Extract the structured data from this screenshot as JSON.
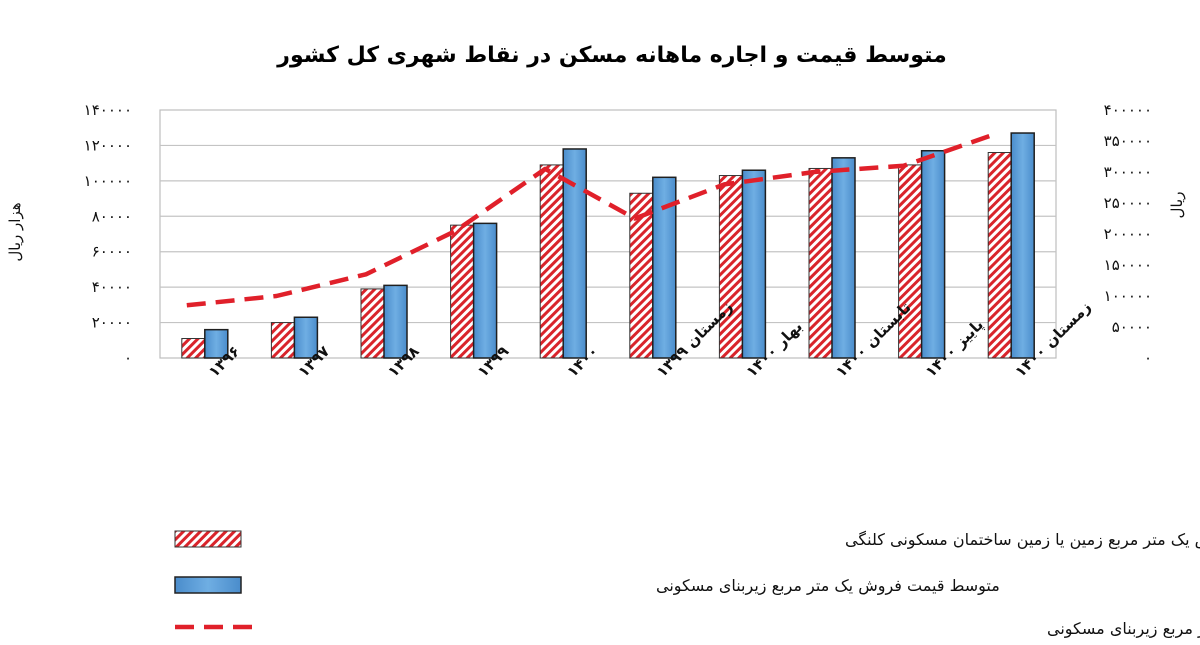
{
  "chart_data": {
    "type": "bar",
    "title": "متوسط قیمت و اجاره ماهانه مسکن در نقاط شهری کل کشور",
    "ylabel_left": "هزار ریال",
    "ylabel_right": "ریال",
    "ylim_left": [
      0,
      140000
    ],
    "ylim_right": [
      0,
      400000
    ],
    "yticks_left": [
      "۰",
      "۲۰۰۰۰",
      "۴۰۰۰۰",
      "۶۰۰۰۰",
      "۸۰۰۰۰",
      "۱۰۰۰۰۰",
      "۱۲۰۰۰۰",
      "۱۴۰۰۰۰"
    ],
    "yticks_right": [
      "۰",
      "۵۰۰۰۰",
      "۱۰۰۰۰۰",
      "۱۵۰۰۰۰",
      "۲۰۰۰۰۰",
      "۲۵۰۰۰۰",
      "۳۰۰۰۰۰",
      "۳۵۰۰۰۰",
      "۴۰۰۰۰۰"
    ],
    "categories": [
      "۱۳۹۶",
      "۱۳۹۷",
      "۱۳۹۸",
      "۱۳۹۹",
      "۱۴۰۰",
      "زمستان ۱۳۹۹",
      "بهار ۱۴۰۰",
      "تابستان ۱۴۰۰",
      "پاییز ۱۴۰۰",
      "زمستان ۱۴۰۰"
    ],
    "grid": true,
    "legend_position": "bottom",
    "series": [
      {
        "name": "متوسط  قیمت فروش یک متر مربع زمین یا زمین ساختمان مسکونی کلنگی",
        "kind": "bar",
        "axis": "left",
        "pattern": "red-hatched",
        "color": "#d9242b",
        "values": [
          11000,
          20000,
          39000,
          75000,
          109000,
          93000,
          103000,
          107000,
          109000,
          116000
        ]
      },
      {
        "name": "متوسط قیمت فروش یک متر مربع زیربنای مسکونی",
        "kind": "bar",
        "axis": "left",
        "pattern": "solid",
        "color": "#5b9bd5",
        "values": [
          16000,
          23000,
          41000,
          76000,
          118000,
          102000,
          106000,
          113000,
          117000,
          127000
        ]
      },
      {
        "name": "متوسط مبلغ اجاره ماهانه به علاوه سه درصد ودیعه پرداختی برای اجاره یک متر مربع زیربنای مسکونی",
        "kind": "line",
        "axis": "right",
        "style": "dashed",
        "color": "#e0202a",
        "values": [
          85000,
          100000,
          135000,
          205000,
          305000,
          225000,
          280000,
          300000,
          310000,
          360000
        ]
      }
    ]
  }
}
